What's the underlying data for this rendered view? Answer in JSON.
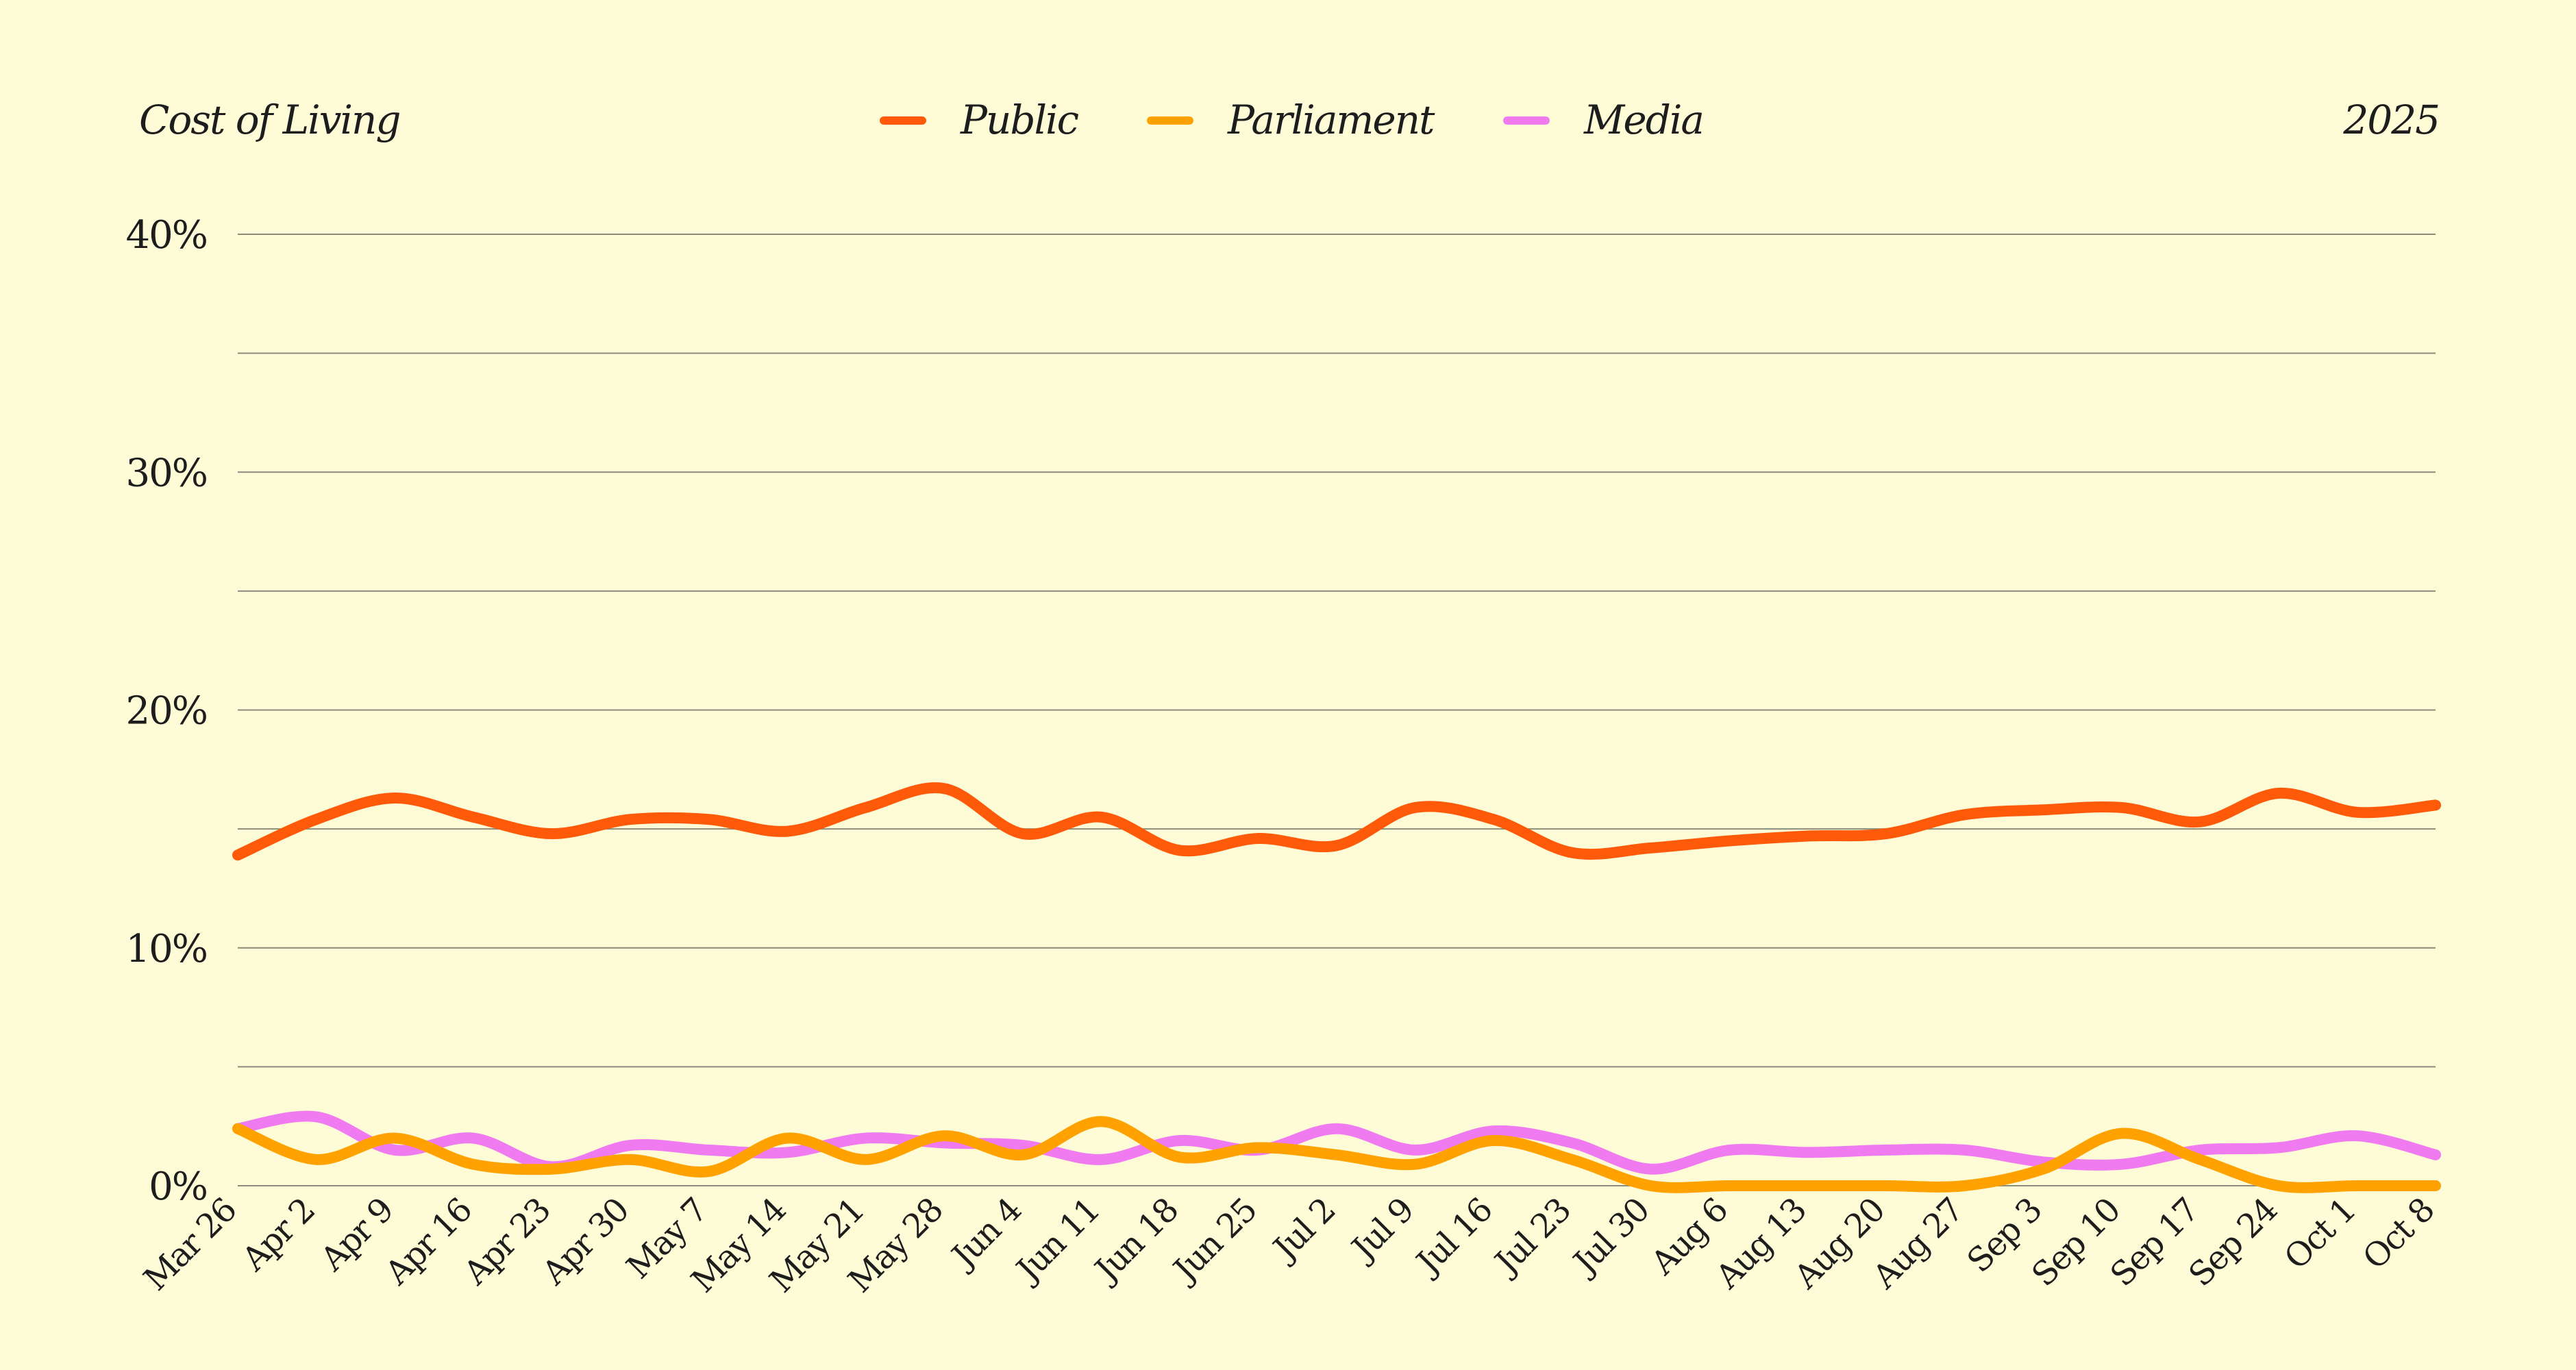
{
  "header": {
    "title": "Cost of Living",
    "year": "2025"
  },
  "colors": {
    "background": "#fefbd7",
    "grid": "#8c8c7a",
    "text": "#1d1d1d"
  },
  "chart_data": {
    "type": "line",
    "title": "Cost of Living",
    "xlabel": "",
    "ylabel": "",
    "ylim": [
      0,
      40
    ],
    "y_ticks": [
      0,
      10,
      20,
      30,
      40
    ],
    "y_tick_labels": [
      "0%",
      "10%",
      "20%",
      "30%",
      "40%"
    ],
    "grid": true,
    "grid_step_minor": 5,
    "legend_placement": "top-center",
    "x": [
      "Mar 26",
      "Apr 2",
      "Apr 9",
      "Apr 16",
      "Apr 23",
      "Apr 30",
      "May 7",
      "May 14",
      "May 21",
      "May 28",
      "Jun 4",
      "Jun 11",
      "Jun 18",
      "Jun 25",
      "Jul 2",
      "Jul 9",
      "Jul 16",
      "Jul 23",
      "Jul 30",
      "Aug 6",
      "Aug 13",
      "Aug 20",
      "Aug 27",
      "Sep 3",
      "Sep 10",
      "Sep 17",
      "Sep 24",
      "Oct 1",
      "Oct 8"
    ],
    "series": [
      {
        "name": "Public",
        "color": "#ff5a0a",
        "values": [
          13.9,
          15.4,
          16.3,
          15.5,
          14.8,
          15.4,
          15.4,
          14.9,
          15.9,
          16.7,
          14.8,
          15.5,
          14.1,
          14.6,
          14.3,
          15.9,
          15.4,
          14.0,
          14.2,
          14.5,
          14.7,
          14.8,
          15.6,
          15.8,
          15.9,
          15.3,
          16.5,
          15.7,
          16.0
        ]
      },
      {
        "name": "Parliament",
        "color": "#ffa200",
        "values": [
          2.4,
          1.1,
          2.0,
          0.9,
          0.7,
          1.1,
          0.6,
          2.0,
          1.1,
          2.1,
          1.3,
          2.7,
          1.2,
          1.6,
          1.3,
          0.9,
          1.9,
          1.1,
          0.0,
          0.0,
          0.0,
          0.0,
          0.0,
          0.7,
          2.2,
          1.1,
          0.0,
          0.0,
          0.0
        ]
      },
      {
        "name": "Media",
        "color": "#f07bf0",
        "values": [
          2.4,
          2.9,
          1.5,
          2.0,
          0.8,
          1.7,
          1.5,
          1.4,
          2.0,
          1.8,
          1.7,
          1.1,
          1.9,
          1.5,
          2.4,
          1.5,
          2.3,
          1.8,
          0.7,
          1.5,
          1.4,
          1.5,
          1.5,
          1.0,
          0.9,
          1.5,
          1.6,
          2.1,
          1.3
        ]
      }
    ]
  }
}
